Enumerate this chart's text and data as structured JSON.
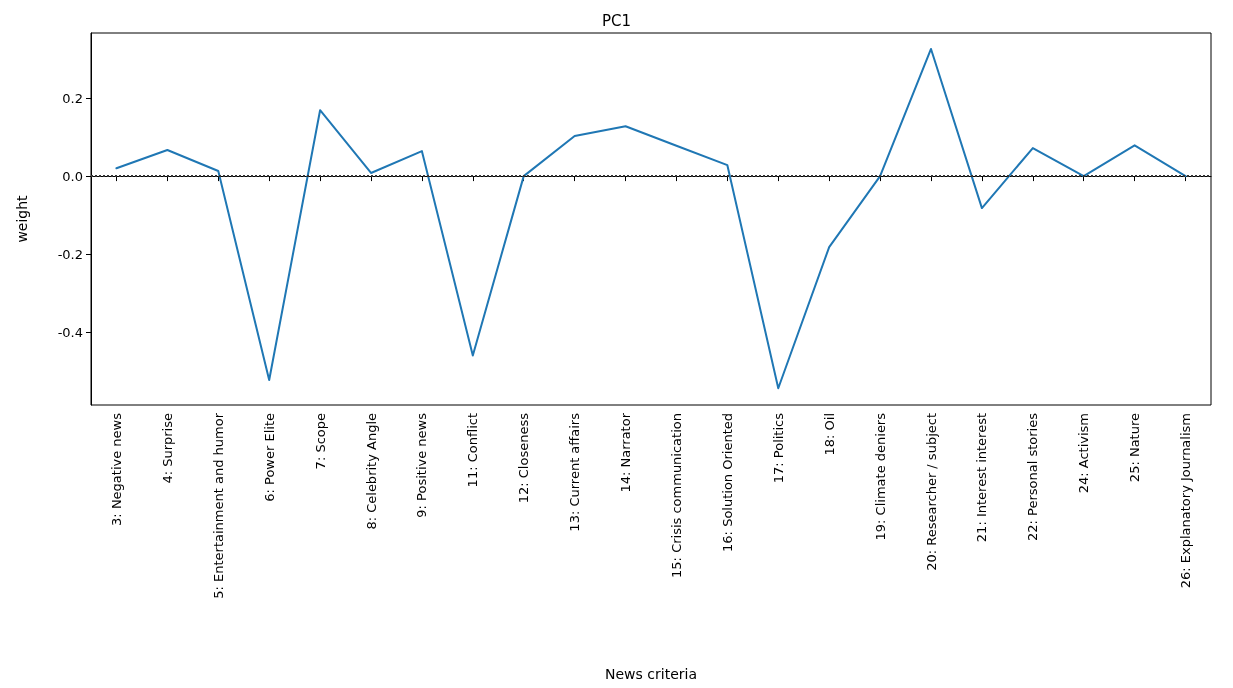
{
  "chart_data": {
    "type": "line",
    "title": "PC1",
    "xlabel": "News criteria",
    "ylabel": "weight",
    "categories": [
      "3: Negative news",
      "4: Surprise",
      "5: Entertainment and humor",
      "6: Power Elite",
      "7: Scope",
      "8: Celebrity Angle",
      "9: Positive news",
      "11: Conflict",
      "12: Closeness",
      "13: Current affairs",
      "14: Narrator",
      "15: Crisis communication",
      "16: Solution Oriented",
      "17: Politics",
      "18: Oil",
      "19: Climate deniers",
      "20: Researcher / subject",
      "21: Interest interest",
      "22: Personal stories",
      "24: Activism",
      "25: Nature",
      "26: Explanatory Journalism"
    ],
    "series": [
      {
        "color": "#1f77b4",
        "values": [
          0.02,
          0.067,
          0.013,
          -0.523,
          0.169,
          0.008,
          0.064,
          -0.46,
          0.0,
          0.103,
          0.128,
          0.078,
          0.028,
          -0.544,
          -0.182,
          0.0,
          0.326,
          -0.082,
          0.072,
          0.0,
          0.079,
          0.0
        ]
      }
    ],
    "ylim": [
      -0.587,
      0.367
    ],
    "yticks": [
      -0.4,
      -0.2,
      {
        "value": 0,
        "label": "0.0"
      },
      0.2
    ],
    "ref_lines": [
      {
        "axis": "y",
        "value": 0,
        "color": "#333333",
        "line_style": "dotted"
      }
    ],
    "grid": false,
    "marker": "none",
    "line_style": "solid"
  }
}
